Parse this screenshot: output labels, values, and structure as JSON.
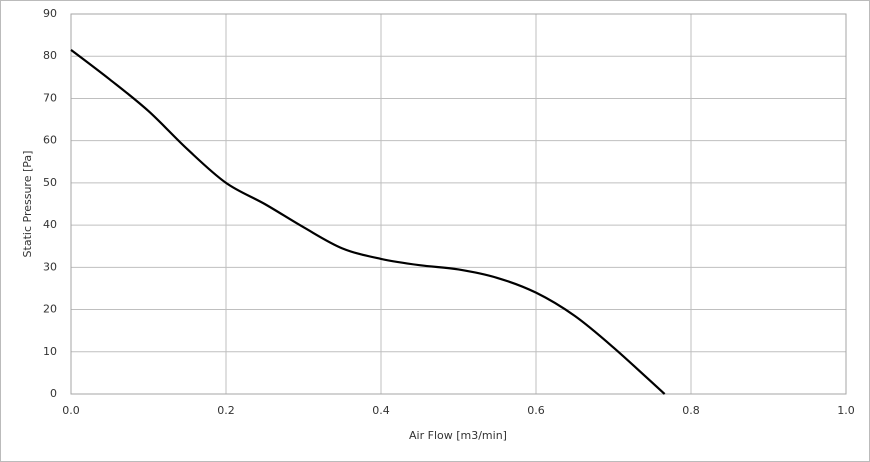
{
  "chart_data": {
    "type": "line",
    "x_label": "Air Flow [m3/min]",
    "y_label": "Static Pressure [Pa]",
    "x": [
      0,
      0.05,
      0.1,
      0.15,
      0.2,
      0.25,
      0.3,
      0.35,
      0.4,
      0.45,
      0.5,
      0.55,
      0.6,
      0.65,
      0.7,
      0.766
    ],
    "series": [
      {
        "color": "#000000",
        "values": [
          81.5,
          74.5,
          67,
          58,
          50,
          45,
          39.5,
          34.5,
          32,
          30.5,
          29.5,
          27.5,
          24,
          18.5,
          11,
          0
        ]
      }
    ],
    "xlim": [
      0,
      1
    ],
    "ylim": [
      0,
      90
    ],
    "xticks": [
      {
        "value": 0,
        "label": "0.0"
      },
      0.2,
      0.4,
      0.6,
      0.8,
      {
        "value": 1,
        "label": "1.0"
      }
    ],
    "yticks": [
      0,
      10,
      20,
      30,
      40,
      50,
      60,
      70,
      80,
      90
    ],
    "grid": true
  }
}
